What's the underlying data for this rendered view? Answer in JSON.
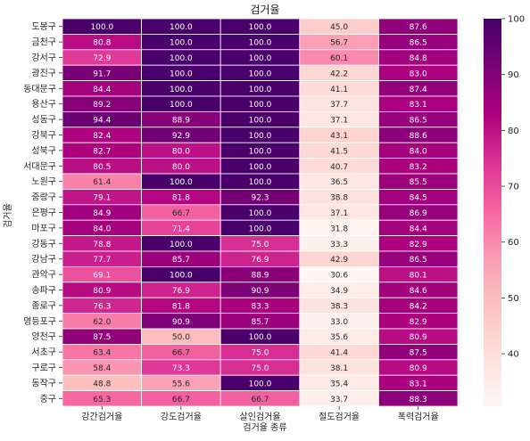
{
  "chart_data": {
    "type": "heatmap",
    "title": "검거율",
    "xlabel": "검거율 종류",
    "ylabel": "검거율",
    "columns": [
      "강간검거율",
      "강도검거율",
      "살인검거율",
      "절도검거율",
      "폭력검거율"
    ],
    "rows": [
      "도봉구",
      "금천구",
      "강서구",
      "광진구",
      "동대문구",
      "용산구",
      "성동구",
      "강북구",
      "성북구",
      "서대문구",
      "노원구",
      "중랑구",
      "은평구",
      "마포구",
      "강동구",
      "강남구",
      "관악구",
      "송파구",
      "종로구",
      "영등포구",
      "양천구",
      "서초구",
      "구로구",
      "동작구",
      "중구"
    ],
    "values": [
      [
        100.0,
        100.0,
        100.0,
        45.0,
        87.6
      ],
      [
        80.8,
        100.0,
        100.0,
        56.7,
        86.5
      ],
      [
        72.9,
        100.0,
        100.0,
        60.1,
        84.8
      ],
      [
        91.7,
        100.0,
        100.0,
        42.2,
        83.0
      ],
      [
        84.4,
        100.0,
        100.0,
        41.1,
        87.4
      ],
      [
        89.2,
        100.0,
        100.0,
        37.7,
        83.1
      ],
      [
        94.4,
        88.9,
        100.0,
        37.1,
        86.5
      ],
      [
        82.4,
        92.9,
        100.0,
        43.1,
        88.6
      ],
      [
        82.7,
        80.0,
        100.0,
        41.5,
        84.0
      ],
      [
        80.5,
        80.0,
        100.0,
        40.7,
        83.2
      ],
      [
        61.4,
        100.0,
        100.0,
        36.5,
        85.5
      ],
      [
        79.1,
        81.8,
        92.3,
        38.8,
        84.5
      ],
      [
        84.9,
        66.7,
        100.0,
        37.1,
        86.9
      ],
      [
        84.0,
        71.4,
        100.0,
        31.8,
        84.4
      ],
      [
        78.8,
        100.0,
        75.0,
        33.3,
        82.9
      ],
      [
        77.7,
        85.7,
        76.9,
        42.9,
        86.5
      ],
      [
        69.1,
        100.0,
        88.9,
        30.6,
        80.1
      ],
      [
        80.9,
        76.9,
        90.9,
        34.9,
        84.6
      ],
      [
        76.3,
        81.8,
        83.3,
        38.3,
        84.2
      ],
      [
        62.0,
        90.9,
        85.7,
        33.0,
        82.9
      ],
      [
        87.5,
        50.0,
        100.0,
        35.6,
        80.9
      ],
      [
        63.4,
        66.7,
        75.0,
        41.4,
        87.5
      ],
      [
        58.4,
        73.3,
        75.0,
        38.1,
        80.9
      ],
      [
        48.8,
        55.6,
        100.0,
        35.4,
        83.1
      ],
      [
        65.3,
        66.7,
        66.7,
        33.7,
        88.3
      ]
    ],
    "colorbar": {
      "min": 30.6,
      "max": 100,
      "ticks": [
        40,
        50,
        60,
        70,
        80,
        90,
        100
      ],
      "colormap": "RdPu",
      "colors": [
        "#fff7f3",
        "#fde0dd",
        "#fcc5c0",
        "#fa9fb5",
        "#f768a1",
        "#dd3497",
        "#ae017e",
        "#7a0177",
        "#49006a"
      ]
    },
    "value_format": "1 decimal",
    "grid_color": "#ffffff"
  }
}
